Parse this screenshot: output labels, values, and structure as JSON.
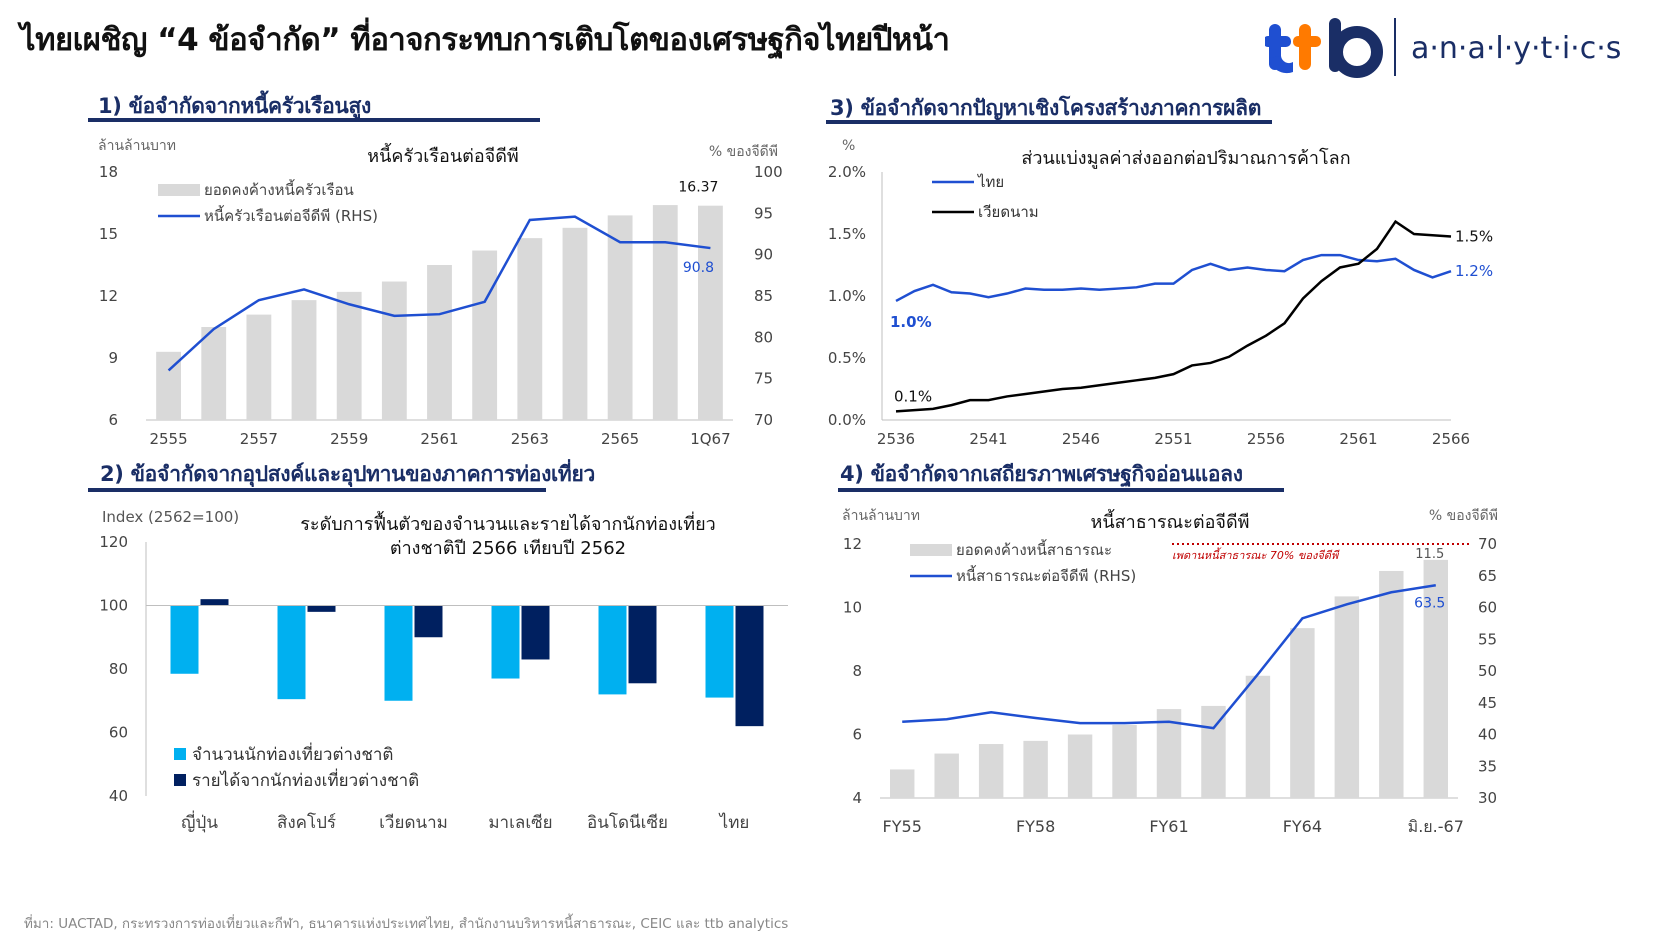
{
  "header": {
    "title": "ไทยเผชิญ “4 ข้อจำกัด” ที่อาจกระทบการเติบโตของเศรษฐกิจไทยปีหน้า",
    "logo_text": "ttb",
    "logo_sub": "a·n·a·l·y·t·i·c·s"
  },
  "sections": [
    {
      "title": "1) ข้อจำกัดจากหนี้ครัวเรือนสูง"
    },
    {
      "title": "2) ข้อจำกัดจากอุปสงค์และอุปทานของภาคการท่องเที่ยว"
    },
    {
      "title": "3) ข้อจำกัดจากปัญหาเชิงโครงสร้างภาคการผลิต"
    },
    {
      "title": "4) ข้อจำกัดจากเสถียรภาพเศรษฐกิจอ่อนแอลง"
    }
  ],
  "source": "ที่มา: UACTAD, กระทรวงการท่องเที่ยวและกีฬา, ธนาคารแห่งประเทศไทย, สำนักงานบริหารหนี้สาธารณะ, CEIC และ ttb analytics",
  "colors": {
    "navy": "#1a2e66",
    "blue": "#1f4fd1",
    "gray_bar": "#d9d9d9",
    "light_blue": "#00b0f0",
    "dark_navy": "#002060",
    "black": "#000000",
    "red": "#c00000"
  },
  "chart_data": [
    {
      "type": "bar",
      "title": "หนี้ครัวเรือนต่อจีดีพี",
      "ylabel": "ล้านล้านบาท",
      "y2label": "% ของจีดีพี",
      "ylim": [
        6,
        18
      ],
      "yticks": [
        6,
        9,
        12,
        15,
        18
      ],
      "y2lim": [
        70,
        100
      ],
      "y2ticks": [
        70,
        75,
        80,
        85,
        90,
        95,
        100
      ],
      "categories": [
        "2555",
        "2556",
        "2557",
        "2558",
        "2559",
        "2560",
        "2561",
        "2562",
        "2563",
        "2564",
        "2565",
        "2566",
        "1Q67"
      ],
      "xtick_labels": [
        "2555",
        "2557",
        "2559",
        "2561",
        "2563",
        "2565",
        "1Q67"
      ],
      "series": [
        {
          "name": "ยอดคงค้างหนี้ครัวเรือน",
          "type": "bar",
          "axis": "left",
          "values": [
            9.3,
            10.5,
            11.1,
            11.8,
            12.2,
            12.7,
            13.5,
            14.2,
            14.8,
            15.3,
            15.9,
            16.4,
            16.37
          ]
        },
        {
          "name": "หนี้ครัวเรือนต่อจีดีพี (RHS)",
          "type": "line",
          "axis": "right",
          "values": [
            76.0,
            81.0,
            84.5,
            85.8,
            84.0,
            82.6,
            82.8,
            84.3,
            94.2,
            94.6,
            91.5,
            91.5,
            90.8
          ]
        }
      ],
      "annotations": [
        {
          "text": "16.37"
        },
        {
          "text": "90.8"
        }
      ]
    },
    {
      "type": "bar",
      "title": "ระดับการฟื้นตัวของจำนวนและรายได้จากนักท่องเที่ยวต่างชาติปี 2566 เทียบปี 2562",
      "title_line1": "ระดับการฟื้นตัวของจำนวนและรายได้จากนักท่องเที่ยว",
      "title_line2": "ต่างชาติปี 2566 เทียบปี 2562",
      "ylabel": "Index (2562=100)",
      "ylim": [
        40,
        120
      ],
      "yticks": [
        40,
        60,
        80,
        100,
        120
      ],
      "baseline": 100,
      "categories": [
        "ญี่ปุ่น",
        "สิงคโปร์",
        "เวียดนาม",
        "มาเลเซีย",
        "อินโดนีเซีย",
        "ไทย"
      ],
      "series": [
        {
          "name": "จำนวนนักท่องเที่ยวต่างชาติ",
          "values": [
            78.5,
            70.5,
            70.0,
            77.0,
            72.0,
            71.0
          ]
        },
        {
          "name": "รายได้จากนักท่องเที่ยวต่างชาติ",
          "values": [
            102.0,
            98.0,
            90.0,
            83.0,
            75.5,
            62.0
          ]
        }
      ]
    },
    {
      "type": "line",
      "title": "ส่วนแบ่งมูลค่าส่งออกต่อปริมาณการค้าโลก",
      "ylabel": "%",
      "ylim": [
        0,
        2
      ],
      "yticks": [
        "0.0%",
        "0.5%",
        "1.0%",
        "1.5%",
        "2.0%"
      ],
      "xlim": [
        2536,
        2566
      ],
      "xticks": [
        "2536",
        "2541",
        "2546",
        "2551",
        "2556",
        "2561",
        "2566"
      ],
      "x": [
        2536,
        2537,
        2538,
        2539,
        2540,
        2541,
        2542,
        2543,
        2544,
        2545,
        2546,
        2547,
        2548,
        2549,
        2550,
        2551,
        2552,
        2553,
        2554,
        2555,
        2556,
        2557,
        2558,
        2559,
        2560,
        2561,
        2562,
        2563,
        2564,
        2565,
        2566
      ],
      "series": [
        {
          "name": "ไทย",
          "values": [
            0.96,
            1.04,
            1.09,
            1.03,
            1.02,
            0.99,
            1.02,
            1.06,
            1.05,
            1.05,
            1.06,
            1.05,
            1.06,
            1.07,
            1.1,
            1.1,
            1.21,
            1.26,
            1.21,
            1.23,
            1.21,
            1.2,
            1.29,
            1.33,
            1.33,
            1.29,
            1.28,
            1.3,
            1.21,
            1.15,
            1.2
          ]
        },
        {
          "name": "เวียดนาม",
          "values": [
            0.07,
            0.08,
            0.09,
            0.12,
            0.16,
            0.16,
            0.19,
            0.21,
            0.23,
            0.25,
            0.26,
            0.28,
            0.3,
            0.32,
            0.34,
            0.37,
            0.44,
            0.46,
            0.51,
            0.6,
            0.68,
            0.78,
            0.98,
            1.12,
            1.23,
            1.26,
            1.38,
            1.6,
            1.5,
            1.49,
            1.48
          ]
        }
      ],
      "annotations": [
        {
          "text": "1.0%"
        },
        {
          "text": "0.1%"
        },
        {
          "text": "1.5%"
        },
        {
          "text": "1.2%"
        }
      ]
    },
    {
      "type": "bar",
      "title": "หนี้สาธารณะต่อจีดีพี",
      "ylabel": "ล้านล้านบาท",
      "y2label": "% ของจีดีพี",
      "ylim": [
        4,
        12
      ],
      "yticks": [
        4,
        6,
        8,
        10,
        12
      ],
      "y2lim": [
        30,
        70
      ],
      "y2ticks": [
        30,
        35,
        40,
        45,
        50,
        55,
        60,
        65,
        70
      ],
      "categories": [
        "FY55",
        "FY56",
        "FY57",
        "FY58",
        "FY59",
        "FY60",
        "FY61",
        "FY62",
        "FY63",
        "FY64",
        "FY65",
        "FY66",
        "มิ.ย.-67"
      ],
      "xtick_labels": [
        "FY55",
        "FY58",
        "FY61",
        "FY64",
        "มิ.ย.-67"
      ],
      "series": [
        {
          "name": "ยอดคงค้างหนี้สาธารณะ",
          "type": "bar",
          "axis": "left",
          "values": [
            4.9,
            5.4,
            5.7,
            5.8,
            6.0,
            6.3,
            6.8,
            6.9,
            7.85,
            9.35,
            10.35,
            11.15,
            11.5
          ]
        },
        {
          "name": "หนี้สาธารณะต่อจีดีพี (RHS)",
          "type": "line",
          "axis": "right",
          "values": [
            42.0,
            42.4,
            43.5,
            42.6,
            41.8,
            41.8,
            42.0,
            41.0,
            49.5,
            58.3,
            60.5,
            62.4,
            63.5
          ]
        }
      ],
      "threshold": {
        "label": "เพดานหนี้สาธารณะ 70% ของจีดีพี",
        "value": 70
      },
      "annotations": [
        {
          "text": "11.5"
        },
        {
          "text": "63.5"
        }
      ]
    }
  ]
}
